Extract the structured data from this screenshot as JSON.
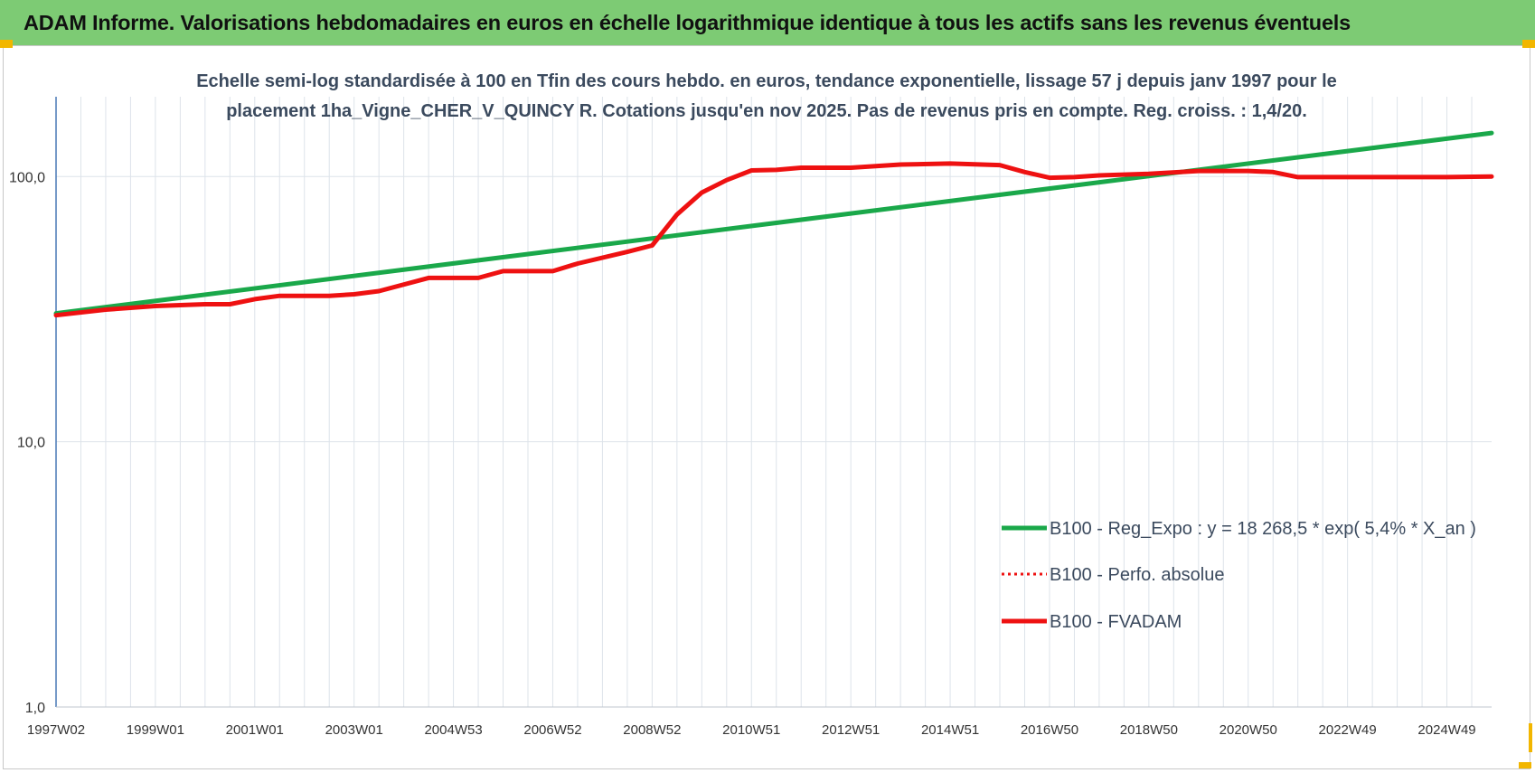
{
  "banner": {
    "title": "ADAM Informe. Valorisations hebdomadaires en euros en échelle logarithmique identique à tous les actifs sans les revenus éventuels"
  },
  "colors": {
    "banner_bg": "#7dcb74",
    "accent_corner": "#f2b600",
    "trend_line": "#1aa84a",
    "perf_line": "#ee1111",
    "fvadam_line": "#ee1111",
    "grid": "#dde3ea",
    "axis": "#4a78b5"
  },
  "chart_data": {
    "type": "line",
    "title_lines": [
      "Echelle semi-log standardisée à 100 en Tfin des cours hebdo. en euros, tendance exponentielle, lissage 57 j depuis janv 1997 pour le",
      "placement 1ha_Vigne_CHER_V_QUINCY R. Cotations jusqu'en nov 2025. Pas de revenus pris en compte. Reg. croiss. : 1,4/20."
    ],
    "y_scale": "log",
    "ylim": [
      1,
      200
    ],
    "y_ticks": [
      {
        "value": 1,
        "label": "1,0"
      },
      {
        "value": 10,
        "label": "10,0"
      },
      {
        "value": 100,
        "label": "100,0"
      }
    ],
    "x_range": [
      1997.0,
      2025.9
    ],
    "x_tick_labels": [
      "1997W02",
      "1999W01",
      "2001W01",
      "2003W01",
      "2004W53",
      "2006W52",
      "2008W52",
      "2010W51",
      "2012W51",
      "2014W51",
      "2016W50",
      "2018W50",
      "2020W50",
      "2022W49",
      "2024W49"
    ],
    "x_tick_years": [
      1997.0,
      1999.0,
      2001.0,
      2003.0,
      2005.0,
      2007.0,
      2009.0,
      2011.0,
      2013.0,
      2015.0,
      2017.0,
      2019.0,
      2021.0,
      2023.0,
      2025.0
    ],
    "grid": true,
    "legend_position": "lower-right",
    "series": [
      {
        "name": "B100 - Reg_Expo : y = 18 268,5 * exp( 5,4% *  X_an )",
        "style": "solid",
        "color": "#1aa84a",
        "x": [
          1997.0,
          2025.9
        ],
        "values": [
          30.5,
          146
        ]
      },
      {
        "name": "B100 - Perfo. absolue",
        "style": "dotted",
        "color": "#ee1111",
        "x": [],
        "values": []
      },
      {
        "name": "B100 - FVADAM",
        "style": "solid",
        "color": "#ee1111",
        "x": [
          1997.0,
          1998.0,
          1999.0,
          2000.0,
          2000.5,
          2001.0,
          2001.5,
          2002.5,
          2003.0,
          2003.5,
          2004.5,
          2005.5,
          2006.0,
          2007.0,
          2007.5,
          2008.5,
          2009.0,
          2009.5,
          2010.0,
          2010.5,
          2011.0,
          2011.5,
          2012.0,
          2013.0,
          2014.0,
          2015.0,
          2016.0,
          2016.5,
          2017.0,
          2017.5,
          2018.0,
          2019.0,
          2020.0,
          2021.0,
          2021.5,
          2022.0,
          2023.0,
          2024.0,
          2025.0,
          2025.9
        ],
        "values": [
          30,
          31.5,
          32.5,
          33,
          33,
          34.5,
          35.5,
          35.5,
          36,
          37,
          41.5,
          41.5,
          44,
          44,
          47,
          52,
          55,
          72,
          87,
          97,
          105.5,
          106,
          108,
          108,
          111,
          112,
          110.5,
          104,
          99,
          99.5,
          101,
          102.5,
          105,
          105,
          104,
          99.5,
          99.5,
          99.5,
          99.5,
          100
        ]
      }
    ]
  }
}
